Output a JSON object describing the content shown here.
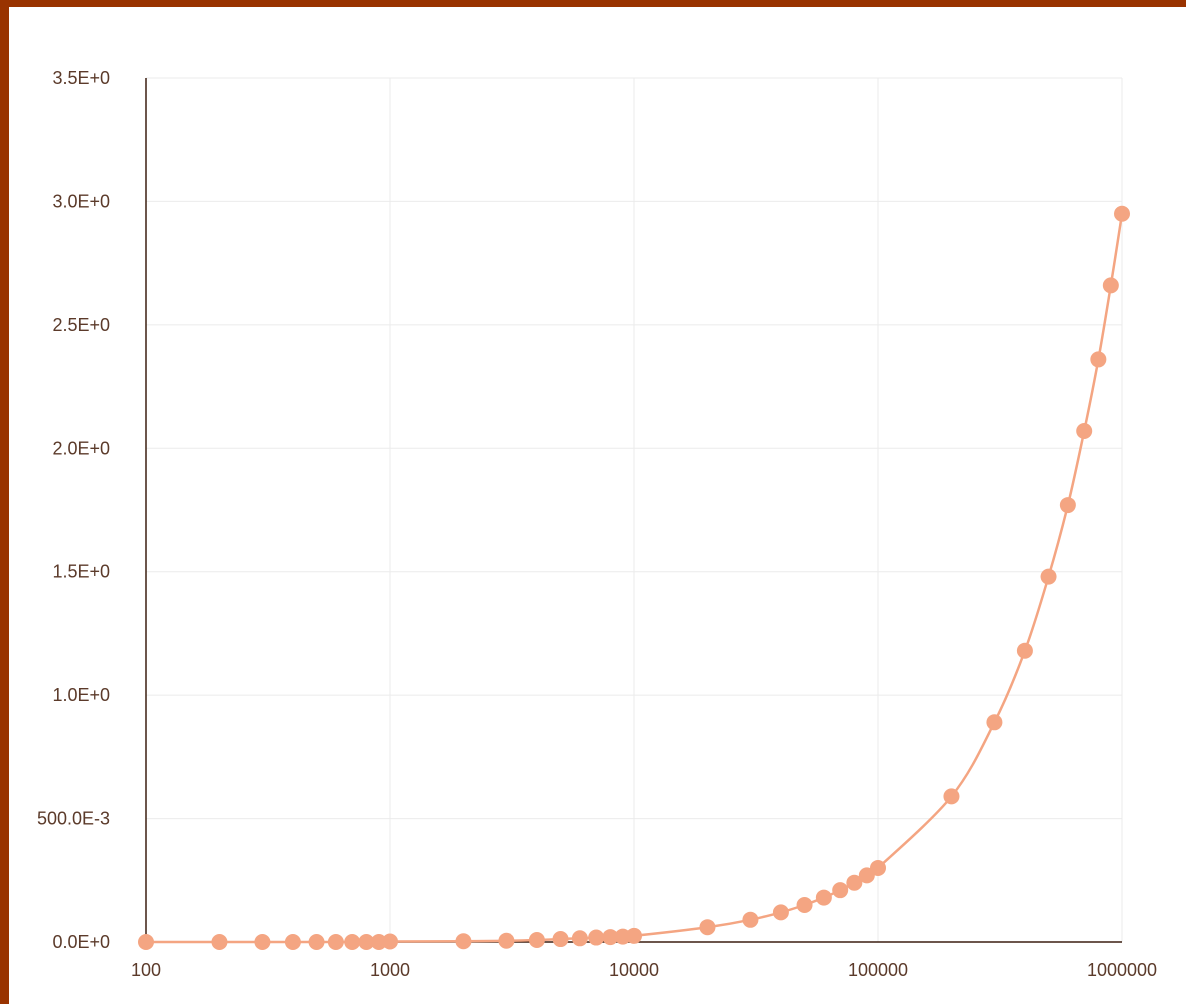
{
  "chart_data": {
    "type": "line",
    "title": "",
    "xlabel": "",
    "ylabel": "",
    "xscale": "log",
    "xlim": [
      100,
      1000000
    ],
    "ylim": [
      0,
      3.5
    ],
    "grid": true,
    "legend": "none",
    "x_ticks": [
      {
        "value": 100,
        "label": "100"
      },
      {
        "value": 1000,
        "label": "1000"
      },
      {
        "value": 10000,
        "label": "10000"
      },
      {
        "value": 100000,
        "label": "100000"
      },
      {
        "value": 1000000,
        "label": "1000000"
      }
    ],
    "y_ticks": [
      {
        "value": 0,
        "label": "0.0E+0"
      },
      {
        "value": 0.5,
        "label": "500.0E-3"
      },
      {
        "value": 1.0,
        "label": "1.0E+0"
      },
      {
        "value": 1.5,
        "label": "1.5E+0"
      },
      {
        "value": 2.0,
        "label": "2.0E+0"
      },
      {
        "value": 2.5,
        "label": "2.5E+0"
      },
      {
        "value": 3.0,
        "label": "3.0E+0"
      },
      {
        "value": 3.5,
        "label": "3.5E+0"
      }
    ],
    "series": [
      {
        "color": "#f4a582",
        "x": [
          100,
          200,
          300,
          400,
          500,
          600,
          700,
          800,
          900,
          1000,
          2000,
          3000,
          4000,
          5000,
          6000,
          7000,
          8000,
          9000,
          10000,
          20000,
          30000,
          40000,
          50000,
          60000,
          70000,
          80000,
          90000,
          100000,
          200000,
          300000,
          400000,
          500000,
          600000,
          700000,
          800000,
          900000,
          1000000
        ],
        "y": [
          0,
          0,
          0,
          0,
          0,
          0,
          0,
          0,
          0,
          0.002,
          0.003,
          0.005,
          0.008,
          0.012,
          0.015,
          0.018,
          0.02,
          0.022,
          0.025,
          0.06,
          0.09,
          0.12,
          0.15,
          0.18,
          0.21,
          0.24,
          0.27,
          0.3,
          0.59,
          0.89,
          1.18,
          1.48,
          1.77,
          2.07,
          2.36,
          2.66,
          2.95
        ]
      }
    ]
  }
}
